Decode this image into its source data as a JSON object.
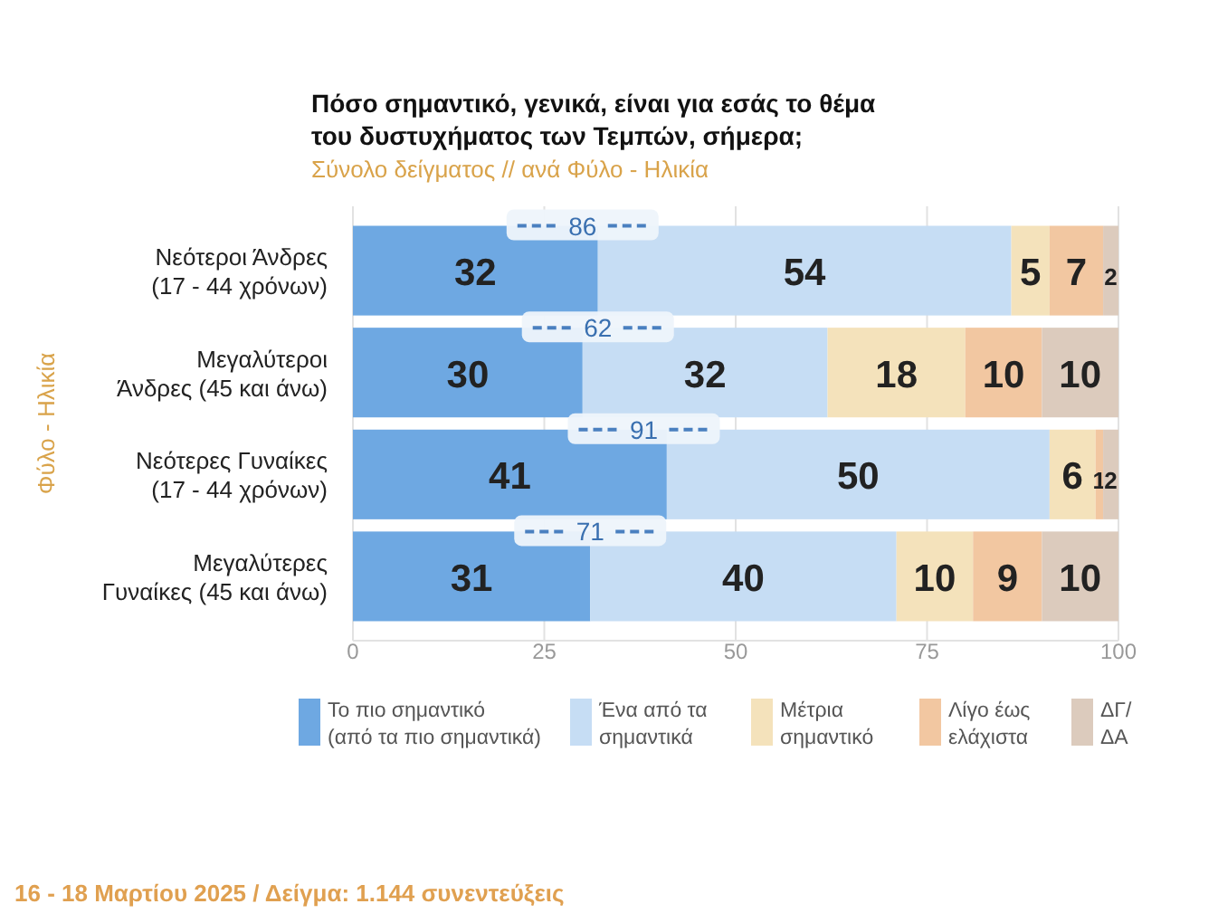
{
  "chart_data": {
    "type": "bar",
    "orientation": "horizontal",
    "stacked": true,
    "title": "Πόσο σημαντικό, γενικά, είναι για εσάς το θέμα\nτου δυστυχήματος των Τεμπών, σήμερα;",
    "subtitle": "Σύνολο δείγματος // ανά Φύλο - Ηλικία",
    "ylabel": "Φύλο - Ηλικία",
    "categories": [
      "Νεότεροι Άνδρες\n(17 - 44 χρόνων)",
      "Μεγαλύτεροι\nΆνδρες (45 και άνω)",
      "Νεότερες Γυναίκες\n(17 - 44 χρόνων)",
      "Μεγαλύτερες\nΓυναίκες (45 και άνω)"
    ],
    "series": [
      {
        "name": "Το πιο σημαντικό\n(από τα πιο σημαντικά)",
        "color": "#6ea8e2",
        "values": [
          32,
          30,
          41,
          31
        ]
      },
      {
        "name": "Ένα από τα\nσημαντικά",
        "color": "#c6ddf4",
        "values": [
          54,
          32,
          50,
          40
        ]
      },
      {
        "name": "Μέτρια\nσημαντικό",
        "color": "#f4e2bb",
        "values": [
          5,
          18,
          6,
          10
        ]
      },
      {
        "name": "Λίγο έως\nελάχιστα",
        "color": "#f2c7a1",
        "values": [
          7,
          10,
          1,
          9
        ]
      },
      {
        "name": "ΔΓ/\nΔΑ",
        "color": "#dccbbd",
        "values": [
          2,
          10,
          2,
          10
        ]
      }
    ],
    "xlim": [
      0,
      100
    ],
    "xticks": [
      0,
      25,
      50,
      75,
      100
    ],
    "grid": "x",
    "data_labels": true,
    "legend": "bottom",
    "annotations": [
      {
        "text": "86",
        "x": 30,
        "y": "Νεότεροι Άνδρες\n(17 - 44 χρόνων)"
      },
      {
        "text": "62",
        "x": 32,
        "y": "Μεγαλύτεροι\nΆνδρες (45 και άνω)"
      },
      {
        "text": "91",
        "x": 38,
        "y": "Νεότερες Γυναίκες\n(17 - 44 χρόνων)"
      },
      {
        "text": "71",
        "x": 31,
        "y": "Μεγαλύτερες\nΓυναίκες (45 και άνω)"
      },
      "16 - 18 Μαρτίου 2025  /  Δείγμα:  1.144 συνεντεύξεις"
    ]
  }
}
